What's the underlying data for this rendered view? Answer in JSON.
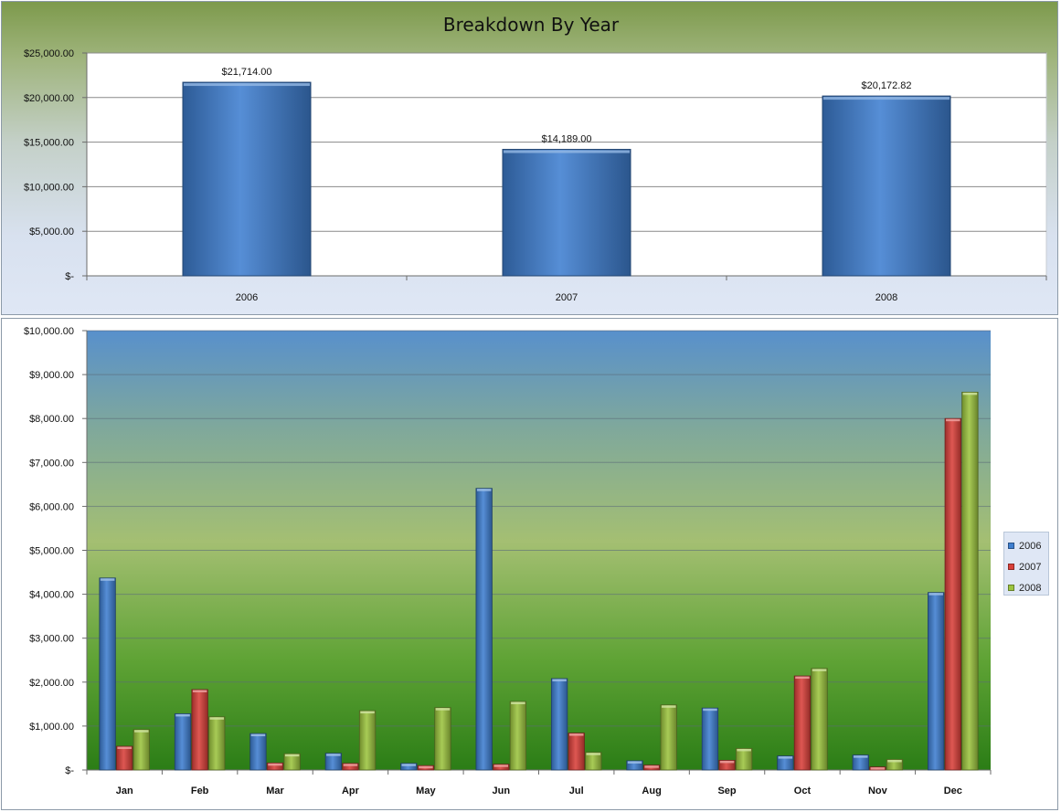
{
  "chart_data": [
    {
      "type": "bar",
      "title": "Breakdown By Year",
      "categories": [
        "2006",
        "2007",
        "2008"
      ],
      "values": [
        21714.0,
        14189.0,
        20172.82
      ],
      "data_labels": [
        "$21,714.00",
        "$14,189.00",
        "$20,172.82"
      ],
      "ylim": [
        0,
        25000
      ],
      "yticks": [
        0,
        5000,
        10000,
        15000,
        20000,
        25000
      ],
      "ytick_labels": [
        "$-",
        "$5,000.00",
        "$10,000.00",
        "$15,000.00",
        "$20,000.00",
        "$25,000.00"
      ],
      "grid": true,
      "color": "#3f7fd0"
    },
    {
      "type": "bar",
      "categories": [
        "Jan",
        "Feb",
        "Mar",
        "Apr",
        "May",
        "Jun",
        "Jul",
        "Aug",
        "Sep",
        "Oct",
        "Nov",
        "Dec"
      ],
      "series": [
        {
          "name": "2006",
          "color": "#3f7fd0",
          "values": [
            4370,
            1280,
            830,
            380,
            150,
            6410,
            2080,
            210,
            1410,
            320,
            340,
            4040
          ]
        },
        {
          "name": "2007",
          "color": "#d9403a",
          "values": [
            540,
            1830,
            160,
            150,
            100,
            130,
            840,
            110,
            220,
            2140,
            70,
            8000
          ]
        },
        {
          "name": "2008",
          "color": "#9cc43f",
          "values": [
            920,
            1210,
            370,
            1350,
            1420,
            1560,
            400,
            1480,
            490,
            2310,
            240,
            8600
          ]
        }
      ],
      "ylim": [
        0,
        10000
      ],
      "yticks": [
        0,
        1000,
        2000,
        3000,
        4000,
        5000,
        6000,
        7000,
        8000,
        9000,
        10000
      ],
      "ytick_labels": [
        "$-",
        "$1,000.00",
        "$2,000.00",
        "$3,000.00",
        "$4,000.00",
        "$5,000.00",
        "$6,000.00",
        "$7,000.00",
        "$8,000.00",
        "$9,000.00",
        "$10,000.00"
      ],
      "grid": true,
      "legend": "right"
    }
  ]
}
